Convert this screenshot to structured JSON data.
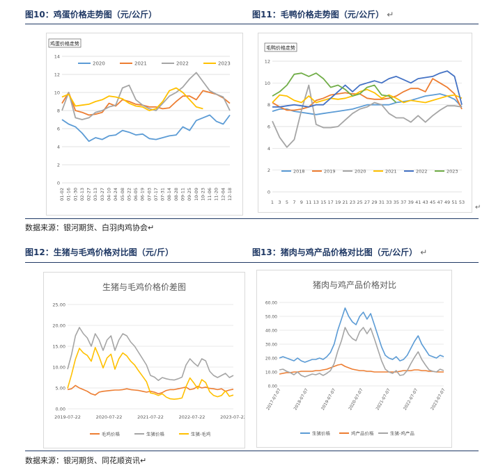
{
  "figures": [
    {
      "title": "图10：鸡蛋价格走势图（元/公斤）",
      "mark": ""
    },
    {
      "title": "图11：毛鸭价格走势图（元/公斤）",
      "mark": "↵"
    },
    {
      "title": "图12：生猪与毛鸡价格对比图（元/斤）",
      "mark": ""
    },
    {
      "title": "图13：猪肉与鸡产品价格对比图（元/公斤）",
      "mark": "↵"
    }
  ],
  "sources": [
    "数据来源：银河期货、白羽肉鸡协会↵",
    "数据来源：银河期货、同花顺资讯↵"
  ],
  "chart_data": [
    {
      "type": "line",
      "title": "鸡蛋价格走势",
      "ylim": [
        0,
        14
      ],
      "yticks": [
        "0",
        "2",
        "4",
        "6",
        "8",
        "10",
        "12",
        "14"
      ],
      "xticks": [
        "01-02",
        "01-16",
        "01-30",
        "02-13",
        "02-27",
        "03-13",
        "03-27",
        "04-10",
        "04-24",
        "05-08",
        "05-22",
        "06-05",
        "06-19",
        "07-03",
        "07-17",
        "07-31",
        "08-14",
        "08-28",
        "09-11",
        "09-25",
        "10-09",
        "10-23",
        "11-06",
        "11-20",
        "12-04",
        "12-18"
      ],
      "legend_position": "top",
      "series": [
        {
          "name": "2020",
          "color": "#5b9bd5",
          "values": [
            7.0,
            6.5,
            6.2,
            5.5,
            4.6,
            5.0,
            4.8,
            5.2,
            5.3,
            5.8,
            5.6,
            5.3,
            5.4,
            4.9,
            4.8,
            5.0,
            5.2,
            5.3,
            6.2,
            5.8,
            6.9,
            7.2,
            7.5,
            6.8,
            6.5,
            7.5
          ]
        },
        {
          "name": "2021",
          "color": "#ed7d31",
          "values": [
            8.8,
            10.0,
            8.0,
            7.8,
            7.5,
            7.6,
            7.8,
            8.8,
            8.5,
            9.2,
            9.0,
            8.7,
            8.6,
            8.4,
            8.4,
            8.2,
            8.3,
            9.0,
            9.6,
            9.6,
            9.2,
            10.2,
            10.0,
            9.8,
            9.4,
            8.8
          ]
        },
        {
          "name": "2022",
          "color": "#a5a5a5",
          "values": [
            8.0,
            10.0,
            7.2,
            7.0,
            7.2,
            7.8,
            8.0,
            8.4,
            8.6,
            10.5,
            10.8,
            9.2,
            8.6,
            8.2,
            8.0,
            8.8,
            9.6,
            10.0,
            10.6,
            11.5,
            12.2,
            11.2,
            10.2,
            9.8,
            9.5,
            8.0
          ]
        },
        {
          "name": "2023",
          "color": "#ffc000",
          "values": [
            9.5,
            9.8,
            8.5,
            8.6,
            8.7,
            9.0,
            9.2,
            9.6,
            9.5,
            9.3,
            8.8,
            8.5,
            8.4,
            8.0,
            8.2,
            9.0,
            10.2,
            10.5,
            10.0,
            9.2,
            8.4,
            8.2
          ]
        }
      ]
    },
    {
      "type": "line",
      "title": "毛鸭价格走势",
      "ylim": [
        0,
        12
      ],
      "yticks": [
        "0",
        "2",
        "4",
        "6",
        "8",
        "10",
        "12"
      ],
      "xticks": [
        "1",
        "3",
        "5",
        "7",
        "9",
        "11",
        "13",
        "15",
        "17",
        "19",
        "21",
        "23",
        "25",
        "27",
        "29",
        "31",
        "33",
        "35",
        "37",
        "39",
        "41",
        "43",
        "45",
        "47",
        "49",
        "51",
        "53"
      ],
      "legend_position": "bottom",
      "series": [
        {
          "name": "2018",
          "color": "#5b9bd5",
          "values": [
            7.4,
            7.6,
            7.6,
            7.4,
            7.3,
            7.2,
            7.1,
            7.2,
            7.3,
            7.4,
            7.5,
            7.6,
            7.8,
            8.0,
            8.0,
            8.0,
            8.0,
            8.2,
            8.3,
            8.4,
            8.6,
            8.8,
            8.9,
            9.0,
            8.8,
            8.5,
            7.8
          ]
        },
        {
          "name": "2019",
          "color": "#ed7d31",
          "values": [
            8.2,
            7.8,
            7.5,
            7.5,
            7.6,
            7.8,
            8.4,
            8.6,
            8.9,
            9.0,
            9.1,
            9.0,
            9.0,
            8.6,
            8.5,
            8.5,
            8.6,
            8.8,
            9.2,
            9.5,
            9.5,
            9.2,
            10.4,
            10.0,
            9.6,
            9.0,
            7.6
          ]
        },
        {
          "name": "2020",
          "color": "#a5a5a5",
          "values": [
            6.5,
            5.0,
            4.1,
            4.8,
            7.5,
            9.8,
            6.2,
            5.9,
            5.9,
            6.0,
            6.6,
            7.2,
            7.6,
            7.8,
            8.2,
            8.0,
            7.2,
            6.8,
            6.8,
            6.4,
            7.0,
            6.4,
            7.0,
            7.5,
            7.9,
            7.9,
            7.8
          ]
        },
        {
          "name": "2021",
          "color": "#ffc000",
          "values": [
            8.2,
            8.9,
            8.8,
            8.4,
            8.2,
            8.8,
            8.2,
            8.4,
            8.6,
            8.5,
            8.6,
            8.8,
            9.2,
            9.4,
            9.1,
            8.6,
            8.9,
            8.6,
            8.2,
            8.4,
            8.3,
            8.2,
            8.4,
            8.6,
            8.8,
            8.9,
            8.6
          ]
        },
        {
          "name": "2022",
          "color": "#4472c4",
          "values": [
            7.8,
            7.8,
            7.9,
            8.0,
            7.9,
            7.8,
            8.0,
            8.0,
            8.6,
            9.2,
            9.8,
            9.2,
            9.8,
            10.0,
            10.2,
            10.0,
            10.4,
            10.6,
            10.3,
            10.0,
            10.4,
            10.5,
            10.6,
            10.9,
            11.1,
            10.6,
            8.0
          ]
        },
        {
          "name": "2023",
          "color": "#70ad47",
          "values": [
            8.8,
            9.2,
            9.8,
            10.8,
            10.9,
            10.6,
            10.9,
            10.4,
            9.6,
            9.8,
            9.4,
            8.8,
            9.0,
            9.6,
            9.8,
            8.9,
            8.8,
            8.2
          ]
        }
      ]
    },
    {
      "type": "line",
      "title": "生猪与毛鸡价格价差图",
      "ylim": [
        0,
        25
      ],
      "yticks": [
        "0.00",
        "5.00",
        "10.00",
        "15.00",
        "20.00",
        "25.00"
      ],
      "xticks": [
        "2019-07-22",
        "2020-07-22",
        "2021-07-22",
        "2022-07-22",
        "2023-07-22"
      ],
      "legend_position": "bottom",
      "series": [
        {
          "name": "毛鸡价格",
          "color": "#ed7d31",
          "values": [
            4.6,
            4.8,
            5.6,
            5.0,
            4.6,
            4.2,
            3.6,
            3.3,
            4.0,
            4.2,
            4.3,
            4.4,
            4.5,
            4.5,
            4.6,
            4.8,
            4.6,
            4.5,
            4.4,
            4.2,
            4.0,
            4.2,
            4.0,
            3.6,
            3.9,
            4.4,
            4.6,
            4.6,
            4.8,
            5.0,
            5.2,
            4.6,
            4.8,
            5.4,
            5.0,
            5.2,
            4.9,
            4.8,
            4.6,
            4.8,
            4.2,
            4.5,
            4.7
          ]
        },
        {
          "name": "生猪价格",
          "color": "#a5a5a5",
          "values": [
            9.5,
            13.0,
            17.5,
            19.5,
            18.0,
            17.0,
            15.0,
            18.0,
            16.5,
            14.0,
            16.5,
            17.5,
            14.0,
            16.5,
            18.0,
            17.5,
            16.0,
            15.0,
            13.5,
            12.0,
            10.5,
            8.0,
            7.6,
            6.8,
            7.5,
            7.2,
            7.0,
            6.9,
            7.2,
            7.6,
            10.5,
            12.0,
            11.0,
            10.2,
            12.0,
            11.5,
            9.0,
            8.0,
            7.5,
            8.0,
            8.5,
            7.5,
            8.0
          ]
        },
        {
          "name": "生猪-毛鸡",
          "color": "#ffc000",
          "values": [
            4.9,
            8.2,
            11.9,
            14.5,
            13.4,
            12.8,
            11.4,
            14.7,
            12.5,
            9.8,
            12.2,
            13.1,
            9.5,
            12.0,
            13.4,
            12.7,
            11.4,
            10.5,
            9.1,
            7.8,
            6.5,
            3.8,
            3.6,
            3.2,
            3.6,
            2.8,
            2.4,
            2.3,
            2.4,
            2.6,
            5.3,
            7.4,
            6.2,
            4.8,
            7.0,
            6.3,
            4.1,
            3.2,
            2.9,
            3.2,
            4.3,
            3.0,
            3.3
          ]
        }
      ]
    },
    {
      "type": "line",
      "title": "猪肉与鸡产品价格对比",
      "ylim": [
        0,
        60
      ],
      "yticks": [
        "0.00",
        "10.00",
        "20.00",
        "30.00",
        "40.00",
        "50.00",
        "60.00"
      ],
      "xticks": [
        "2017-07-07",
        "2018-07-07",
        "2019-07-07",
        "2020-07-07",
        "2021-07-07",
        "2022-07-07",
        "2023-07-07"
      ],
      "legend_position": "bottom",
      "series": [
        {
          "name": "生猪价格",
          "color": "#5b9bd5",
          "values": [
            20,
            21,
            20,
            19,
            18,
            20,
            18,
            17,
            18,
            19,
            19,
            20,
            19,
            21,
            24,
            30,
            40,
            48,
            56,
            50,
            46,
            44,
            50,
            53,
            48,
            52,
            44,
            36,
            28,
            22,
            20,
            19,
            21,
            18,
            19,
            22,
            27,
            32,
            36,
            30,
            26,
            22,
            21,
            20,
            22,
            21
          ]
        },
        {
          "name": "鸡产品价格",
          "color": "#ed7d31",
          "values": [
            8.5,
            9.0,
            9.5,
            9.5,
            10,
            10,
            10.5,
            10.5,
            10.5,
            10.5,
            11,
            11,
            11.5,
            12,
            13,
            14,
            15,
            15.5,
            14,
            13,
            12,
            11.5,
            11,
            11,
            10.5,
            10.5,
            10,
            10,
            10,
            10,
            10,
            10,
            10,
            10.5,
            11,
            11,
            11,
            11.5,
            11.5,
            11,
            11,
            10.5,
            10.5,
            10,
            10,
            10
          ]
        },
        {
          "name": "生猪-鸡产品",
          "color": "#a5a5a5",
          "values": [
            11.5,
            12,
            10.5,
            9.5,
            8,
            10,
            7.5,
            6.5,
            7.5,
            8.5,
            8,
            9,
            7.5,
            9,
            11,
            16,
            25,
            32.5,
            42,
            37,
            34,
            32.5,
            39,
            42,
            37.5,
            41.5,
            34,
            26,
            18,
            12,
            10,
            9,
            11,
            7.5,
            8,
            11,
            16,
            20.5,
            24.5,
            19,
            15,
            11.5,
            10.5,
            10,
            12,
            11
          ]
        }
      ]
    }
  ]
}
